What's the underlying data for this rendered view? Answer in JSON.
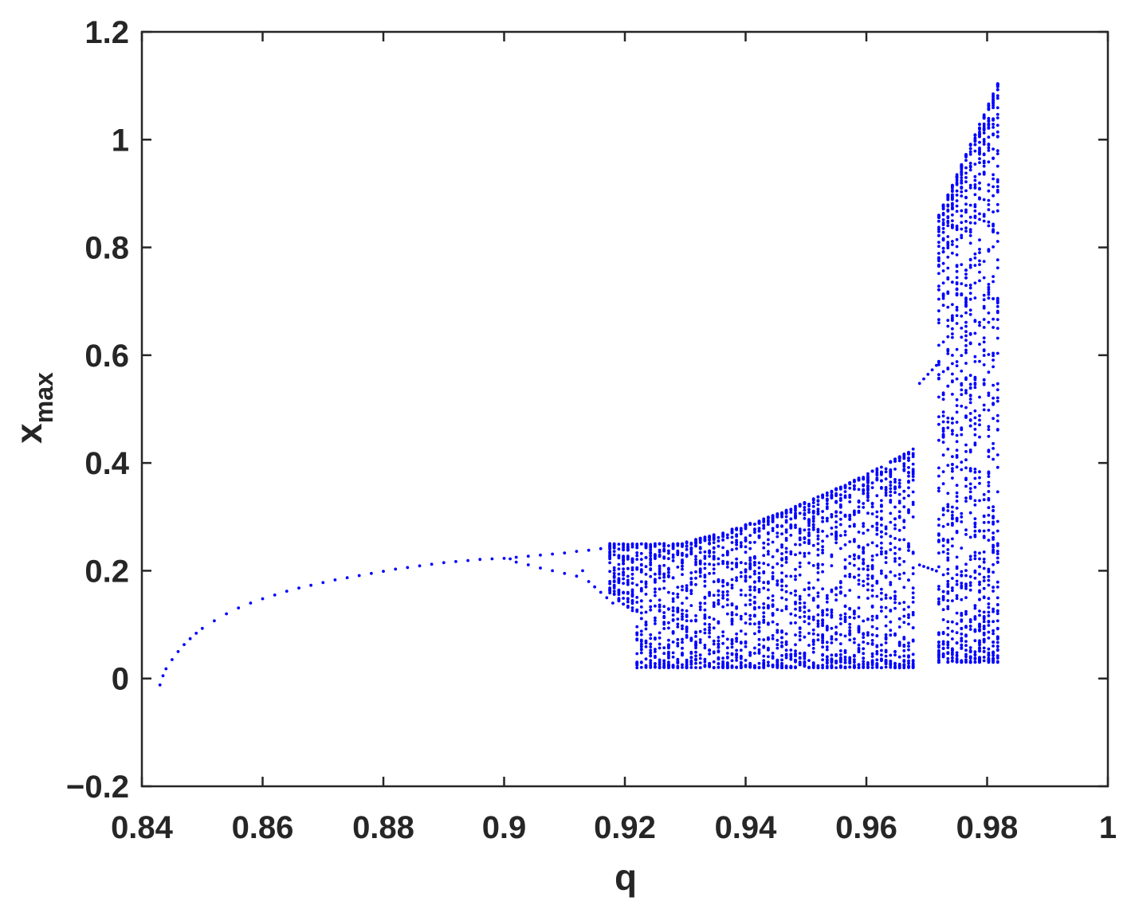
{
  "chart_data": {
    "type": "scatter",
    "xlabel": "q",
    "ylabel": {
      "base": "x",
      "subscript": "max"
    },
    "xlim": [
      0.84,
      1.0
    ],
    "ylim": [
      -0.2,
      1.2
    ],
    "xticks": [
      0.84,
      0.86,
      0.88,
      0.9,
      0.92,
      0.94,
      0.96,
      0.98,
      1.0
    ],
    "xtick_labels": [
      "0.84",
      "0.86",
      "0.88",
      "0.9",
      "0.92",
      "0.94",
      "0.96",
      "0.98",
      "1"
    ],
    "yticks": [
      -0.2,
      0,
      0.2,
      0.4,
      0.6,
      0.8,
      1.0,
      1.2
    ],
    "ytick_labels": [
      "−0.2",
      "0",
      "0.2",
      "0.4",
      "0.6",
      "0.8",
      "1",
      "1.2"
    ],
    "grid": false,
    "series": [
      {
        "color": "#0000ff",
        "points": [
          [
            0.843,
            -0.012
          ],
          [
            0.8435,
            0.005
          ],
          [
            0.844,
            0.018
          ],
          [
            0.845,
            0.035
          ],
          [
            0.846,
            0.05
          ],
          [
            0.847,
            0.063
          ],
          [
            0.848,
            0.074
          ],
          [
            0.849,
            0.084
          ],
          [
            0.85,
            0.093
          ],
          [
            0.852,
            0.107
          ],
          [
            0.854,
            0.12
          ],
          [
            0.856,
            0.131
          ],
          [
            0.858,
            0.14
          ],
          [
            0.86,
            0.148
          ],
          [
            0.862,
            0.155
          ],
          [
            0.864,
            0.162
          ],
          [
            0.866,
            0.168
          ],
          [
            0.868,
            0.173
          ],
          [
            0.87,
            0.178
          ],
          [
            0.872,
            0.183
          ],
          [
            0.874,
            0.187
          ],
          [
            0.876,
            0.191
          ],
          [
            0.878,
            0.195
          ],
          [
            0.88,
            0.199
          ],
          [
            0.882,
            0.203
          ],
          [
            0.884,
            0.206
          ],
          [
            0.886,
            0.209
          ],
          [
            0.888,
            0.212
          ],
          [
            0.89,
            0.215
          ],
          [
            0.892,
            0.217
          ],
          [
            0.894,
            0.219
          ],
          [
            0.896,
            0.221
          ],
          [
            0.898,
            0.222
          ],
          [
            0.9,
            0.223
          ],
          [
            0.901,
            0.222
          ],
          [
            0.902,
            0.225
          ],
          [
            0.904,
            0.227
          ],
          [
            0.906,
            0.229
          ],
          [
            0.908,
            0.231
          ],
          [
            0.91,
            0.233
          ],
          [
            0.912,
            0.236
          ],
          [
            0.914,
            0.238
          ],
          [
            0.916,
            0.241
          ],
          [
            0.902,
            0.216
          ],
          [
            0.904,
            0.211
          ],
          [
            0.906,
            0.205
          ],
          [
            0.908,
            0.2
          ],
          [
            0.91,
            0.195
          ],
          [
            0.912,
            0.19
          ],
          [
            0.913,
            0.2
          ],
          [
            0.914,
            0.18
          ],
          [
            0.915,
            0.17
          ],
          [
            0.916,
            0.16
          ],
          [
            0.917,
            0.15
          ],
          [
            0.918,
            0.14
          ]
        ]
      }
    ]
  }
}
